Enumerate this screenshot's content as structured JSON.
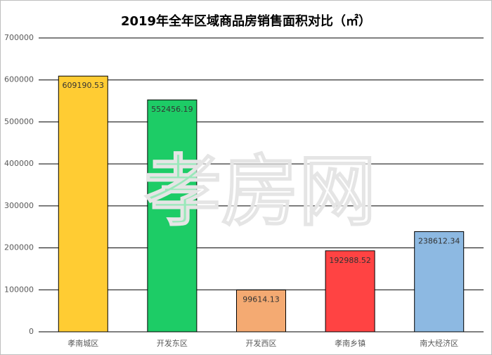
{
  "chart_data": {
    "type": "bar",
    "title": "2019年全年区域商品房销售面积对比（㎡）",
    "watermark": "孝房网",
    "categories": [
      "孝南城区",
      "开发东区",
      "开发西区",
      "孝南乡镇",
      "南大经济区"
    ],
    "values": [
      609190.53,
      552456.19,
      99614.13,
      192988.52,
      238612.34
    ],
    "colors": [
      "#ffcc33",
      "#1dcc66",
      "#f4aa72",
      "#ff4343",
      "#8db9e2"
    ],
    "ylim": [
      0,
      700000
    ],
    "yticks": [
      0,
      100000,
      200000,
      300000,
      400000,
      500000,
      600000,
      700000
    ],
    "grid": true
  }
}
